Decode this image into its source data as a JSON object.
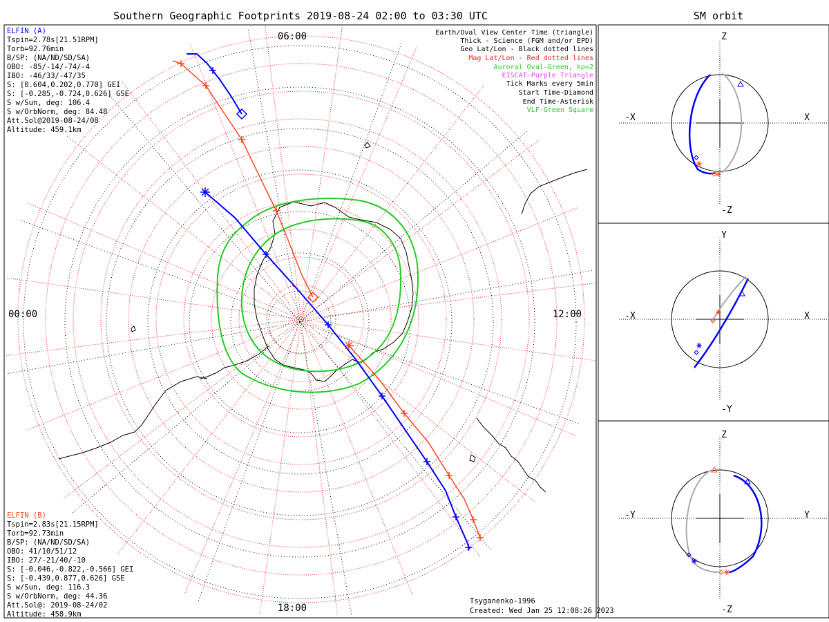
{
  "main_title": "Southern Geographic Footprints 2019-08-24 02:00 to 03:30 UTC",
  "orbit_title": "SM orbit",
  "local_time_labels": {
    "top": "06:00",
    "left": "00:00",
    "right": "12:00",
    "bottom": "18:00"
  },
  "colors": {
    "elfin_a": "#0000ff",
    "elfin_b": "#ff4422",
    "auroral": "#22cc22",
    "mag_grid": "#ee2222",
    "eiscat": "#dd44dd",
    "orbit_other": "#aaaaaa"
  },
  "elfin_a": {
    "name": "ELFIN (A)",
    "lines": [
      "Tspin=2.78s[21.51RPM]",
      "Torb=92.76min",
      "B/SP: (NA/ND/SD/SA)",
      "OBO: -85/-14/-74/-4",
      "IBO: -46/33/-47/35",
      "S: [0.604,0.202,0.770] GEI",
      "S: [-0.285,-0.724,0.626] GSE",
      "S w/Sun, deg: 106.4",
      "S w/OrbNorm, deg: 84.48",
      "Att.Sol@2019-08-24/08",
      "Altitude: 459.1km"
    ]
  },
  "elfin_b": {
    "name": "ELFIN (B)",
    "lines": [
      "Tspin=2.83s[21.15RPM]",
      "Torb=92.73min",
      "B/SP: (NA/ND/SD/SA)",
      "OBO: 41/10/51/12",
      "IBO: 27/-21/40/-10",
      "S: [-0.046,-0.822,-0.566] GEI",
      "S: [-0.439,0.877,0.626] GSE",
      "S w/Sun, deg: 116.3",
      "S w/OrbNorm, deg: 44.36",
      "Att.Sol@: 2019-08-24/02",
      "Altitude: 458.9km"
    ]
  },
  "legend": [
    {
      "text": "Earth/Oval View Center Time (triangle)",
      "color": "#000000"
    },
    {
      "text": "Thick - Science (FGM and/or EPD)",
      "color": "#000000"
    },
    {
      "text": "Geo Lat/Lon - Black dotted lines",
      "color": "#000000"
    },
    {
      "text": "Mag Lat/Lon - Red dotted lines",
      "color": "#ee2222"
    },
    {
      "text": "Auroral Oval-Green, kp=2",
      "color": "#22cc22"
    },
    {
      "text": "EISCAT-Purple Triangle",
      "color": "#dd44dd"
    },
    {
      "text": "Tick Marks every 5min",
      "color": "#000000"
    },
    {
      "text": "Start Time-Diamond",
      "color": "#000000"
    },
    {
      "text": "End Time-Asterisk",
      "color": "#000000"
    },
    {
      "text": "VLF-Green Square",
      "color": "#22cc22"
    }
  ],
  "footer": {
    "model": "Tsyganenko-1996",
    "created": "Created: Wed Jan 25 12:08:26 2023"
  },
  "orbit_panels": [
    {
      "top": "Z",
      "bottom": "-Z",
      "left": "-X",
      "right": "X"
    },
    {
      "top": "Y",
      "bottom": "-Y",
      "left": "-X",
      "right": "X"
    },
    {
      "top": "Z",
      "bottom": "-Z",
      "left": "-Y",
      "right": "Y"
    }
  ]
}
